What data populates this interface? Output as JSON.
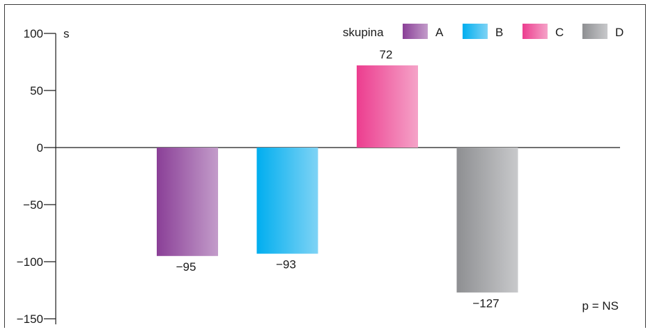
{
  "chart_data": {
    "type": "bar",
    "categories": [
      "A",
      "B",
      "C",
      "D"
    ],
    "values": [
      -95,
      -93,
      72,
      -127
    ],
    "value_labels": [
      "−95",
      "−93",
      "72",
      "−127"
    ],
    "ylabel": "s",
    "ylim": [
      -150,
      100
    ],
    "yticks": [
      100,
      50,
      0,
      -50,
      -100,
      -150
    ],
    "ytick_labels": [
      "100",
      "50",
      "0",
      "−50",
      "−100",
      "−150"
    ],
    "grid": false,
    "legend": {
      "title": "skupina",
      "placement": "top-right",
      "entries": [
        "A",
        "B",
        "C",
        "D"
      ]
    },
    "annotation": "p = NS",
    "colors": {
      "A": [
        "#8a3f97",
        "#c39cca"
      ],
      "B": [
        "#00aeef",
        "#7fd3f5"
      ],
      "C": [
        "#ec3d8f",
        "#f5a3c8"
      ],
      "D": [
        "#8e8f92",
        "#c8c9cb"
      ]
    }
  }
}
